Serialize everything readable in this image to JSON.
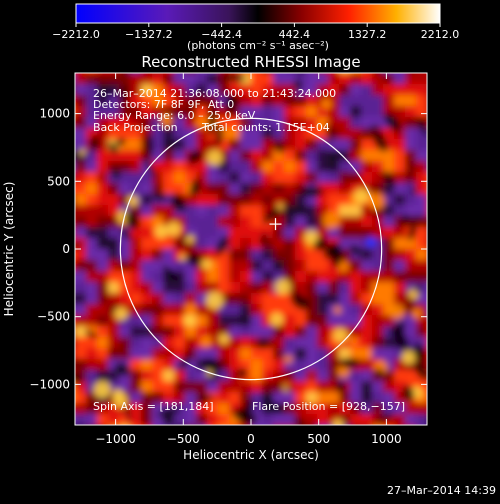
{
  "chart_data": {
    "type": "heatmap",
    "title": "Reconstructed RHESSI Image",
    "xlabel": "Heliocentric X (arcsec)",
    "ylabel": "Heliocentric Y (arcsec)",
    "xlim": [
      -1300,
      1300
    ],
    "ylim": [
      -1300,
      1300
    ],
    "x_ticks": [
      -1000,
      -500,
      0,
      500,
      1000
    ],
    "y_ticks": [
      -1000,
      -500,
      0,
      500,
      1000
    ],
    "x_tick_labels": [
      "−1000",
      "−500",
      "0",
      "500",
      "1000"
    ],
    "y_tick_labels": [
      "−1000",
      "−500",
      "0",
      "500",
      "1000"
    ],
    "colorbar": {
      "min": -2212.0,
      "max": 2212.0,
      "ticks": [
        -2212.0,
        -1327.2,
        -442.4,
        442.4,
        1327.2,
        2212.0
      ],
      "tick_labels": [
        "−2212.0",
        "−1327.2",
        "−442.4",
        "442.4",
        "1327.2",
        "2212.0"
      ],
      "units_label": "(photons cm⁻² s⁻¹ asec⁻²)"
    },
    "annotations": {
      "time_range": "26–Mar–2014 21:36:08.000 to 21:43:24.000",
      "detectors": "Detectors: 7F 8F 9F, Att 0",
      "energy_range": "Energy Range: 6.0 – 25.0 keV",
      "method": "Back Projection",
      "total_counts": "Total counts: 1.15E+04",
      "spin_axis": "Spin Axis = [181,184]",
      "flare_position": "Flare Position = [928,−157]"
    },
    "solar_limb_radius_arcsec": 965,
    "spin_axis_xy": [
      181,
      184
    ],
    "grid": false
  },
  "footer": {
    "timestamp": "27–Mar–2014 14:39"
  }
}
